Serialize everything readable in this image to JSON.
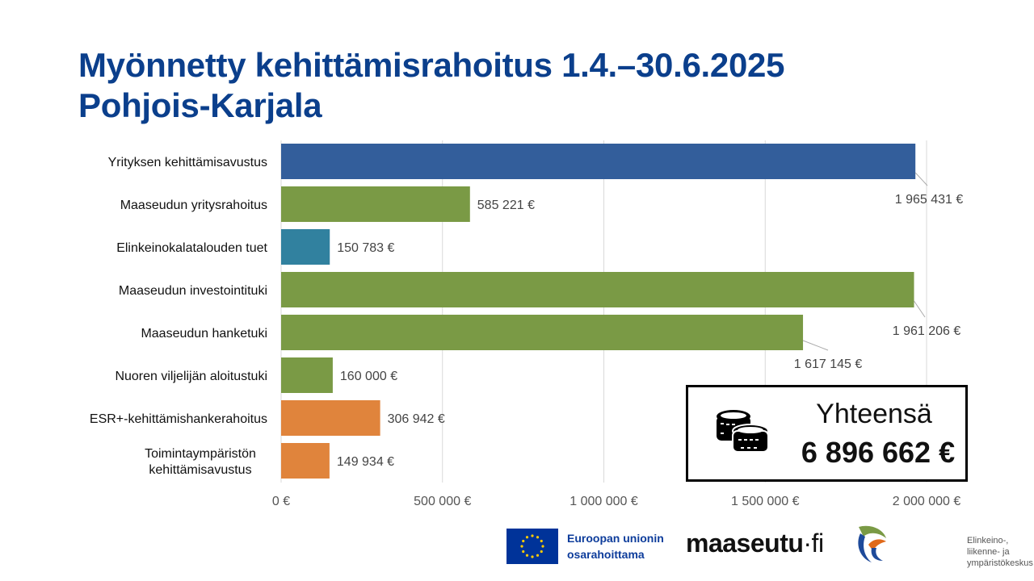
{
  "title": {
    "line1": "Myönnetty kehittämisrahoitus 1.4.–30.6.2025",
    "line2": "Pohjois-Karjala"
  },
  "chart_data": {
    "type": "bar",
    "orientation": "horizontal",
    "categories": [
      "Yrityksen kehittämisavustus",
      "Maaseudun yritysrahoitus",
      "Elinkeinokalatalouden tuet",
      "Maaseudun investointituki",
      "Maaseudun hanketuki",
      "Nuoren viljelijän aloitustuki",
      "ESR+-kehittämishankerahoitus",
      "Toimintaympäristön kehittämisavustus"
    ],
    "values": [
      1965431,
      585221,
      150783,
      1961206,
      1617145,
      160000,
      306942,
      149934
    ],
    "data_labels": [
      "1 965 431 €",
      "585 221 €",
      "150 783 €",
      "1 961 206 €",
      "1 617 145 €",
      "160 000 €",
      "306 942 €",
      "149 934 €"
    ],
    "colors": [
      "#335e9b",
      "#7a9a45",
      "#31819f",
      "#7a9a45",
      "#7a9a45",
      "#7a9a45",
      "#e0843c",
      "#e0843c"
    ],
    "xlim": [
      0,
      2000000
    ],
    "xticks": [
      0,
      500000,
      1000000,
      1500000,
      2000000
    ],
    "xtick_labels": [
      "0 €",
      "500 000 €",
      "1 000 000 €",
      "1 500 000 €",
      "2 000 000 €"
    ],
    "grid": true
  },
  "total": {
    "label": "Yhteensä",
    "value": "6 896 662 €",
    "icon": "coins-icon"
  },
  "logos": {
    "eu_line1": "Euroopan unionin",
    "eu_line2": "osarahoittama",
    "maaseutu": "maaseutu",
    "maaseutu_suffix": "·fi",
    "ely_line1": "Elinkeino-, liikenne- ja",
    "ely_line2": "ympäristökeskus"
  }
}
